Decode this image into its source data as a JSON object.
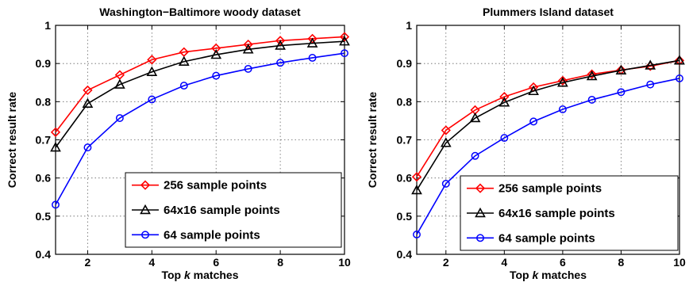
{
  "chart_data": [
    {
      "type": "line",
      "title": "Washington−Baltimore woody dataset",
      "xlabel_prefix": "Top ",
      "xlabel_italic": "k",
      "xlabel_suffix": " matches",
      "ylabel": "Correct result rate",
      "xlim": [
        1,
        10
      ],
      "ylim": [
        0.4,
        1.0
      ],
      "xticks": [
        2,
        4,
        6,
        8,
        10
      ],
      "yticks": [
        0.4,
        0.5,
        0.6,
        0.7,
        0.8,
        0.9,
        1.0
      ],
      "ytick_labels": [
        "0.4",
        "0.5",
        "0.6",
        "0.7",
        "0.8",
        "0.9",
        "1"
      ],
      "grid": true,
      "legend_position": "bottom-right",
      "x": [
        1,
        2,
        3,
        4,
        5,
        6,
        7,
        8,
        9,
        10
      ],
      "series": [
        {
          "name": "256 sample points",
          "color": "#ff0000",
          "marker": "diamond",
          "values": [
            0.72,
            0.83,
            0.87,
            0.91,
            0.93,
            0.94,
            0.95,
            0.96,
            0.965,
            0.97
          ]
        },
        {
          "name": "64x16 sample points",
          "color": "#000000",
          "marker": "triangle",
          "values": [
            0.68,
            0.795,
            0.845,
            0.878,
            0.905,
            0.923,
            0.937,
            0.947,
            0.953,
            0.958
          ]
        },
        {
          "name": "64 sample points",
          "color": "#0000ff",
          "marker": "circle",
          "values": [
            0.53,
            0.68,
            0.757,
            0.806,
            0.842,
            0.868,
            0.886,
            0.902,
            0.915,
            0.927
          ]
        }
      ]
    },
    {
      "type": "line",
      "title": "Plummers Island dataset",
      "xlabel_prefix": "Top ",
      "xlabel_italic": "k",
      "xlabel_suffix": " matches",
      "ylabel": "Correct result rate",
      "xlim": [
        1,
        10
      ],
      "ylim": [
        0.4,
        1.0
      ],
      "xticks": [
        2,
        4,
        6,
        8,
        10
      ],
      "yticks": [
        0.4,
        0.5,
        0.6,
        0.7,
        0.8,
        0.9,
        1.0
      ],
      "ytick_labels": [
        "0.4",
        "0.5",
        "0.6",
        "0.7",
        "0.8",
        "0.9",
        "1"
      ],
      "grid": true,
      "legend_position": "bottom-right",
      "x": [
        1,
        2,
        3,
        4,
        5,
        6,
        7,
        8,
        9,
        10
      ],
      "series": [
        {
          "name": "256 sample points",
          "color": "#ff0000",
          "marker": "diamond",
          "values": [
            0.603,
            0.725,
            0.778,
            0.813,
            0.838,
            0.855,
            0.872,
            0.883,
            0.893,
            0.908
          ]
        },
        {
          "name": "64x16 sample points",
          "color": "#000000",
          "marker": "triangle",
          "values": [
            0.568,
            0.692,
            0.757,
            0.798,
            0.828,
            0.85,
            0.867,
            0.882,
            0.895,
            0.908
          ]
        },
        {
          "name": "64 sample points",
          "color": "#0000ff",
          "marker": "circle",
          "values": [
            0.452,
            0.585,
            0.658,
            0.705,
            0.748,
            0.78,
            0.805,
            0.825,
            0.845,
            0.861
          ]
        }
      ]
    }
  ]
}
